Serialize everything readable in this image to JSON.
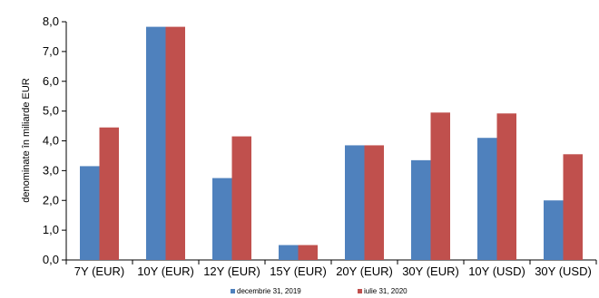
{
  "chart_data": {
    "type": "bar",
    "title": "",
    "xlabel": "",
    "ylabel": "denominate în miliarde EUR",
    "ylim": [
      0,
      8
    ],
    "ytick_step": 1,
    "ytick_labels": [
      "0,0",
      "1,0",
      "2,0",
      "3,0",
      "4,0",
      "5,0",
      "6,0",
      "7,0",
      "8,0"
    ],
    "categories": [
      "7Y (EUR)",
      "10Y (EUR)",
      "12Y (EUR)",
      "15Y (EUR)",
      "20Y (EUR)",
      "30Y (EUR)",
      "10Y (USD)",
      "30Y (USD)"
    ],
    "series": [
      {
        "name": "decembrie 31, 2019",
        "color": "#4F81BD",
        "values": [
          3.15,
          7.83,
          2.75,
          0.5,
          3.85,
          3.35,
          4.1,
          2.0
        ]
      },
      {
        "name": "iulie 31, 2020",
        "color": "#C0504D",
        "values": [
          4.45,
          7.83,
          4.15,
          0.5,
          3.85,
          4.95,
          4.92,
          3.55
        ]
      }
    ],
    "grid": false,
    "legend_position": "bottom"
  }
}
